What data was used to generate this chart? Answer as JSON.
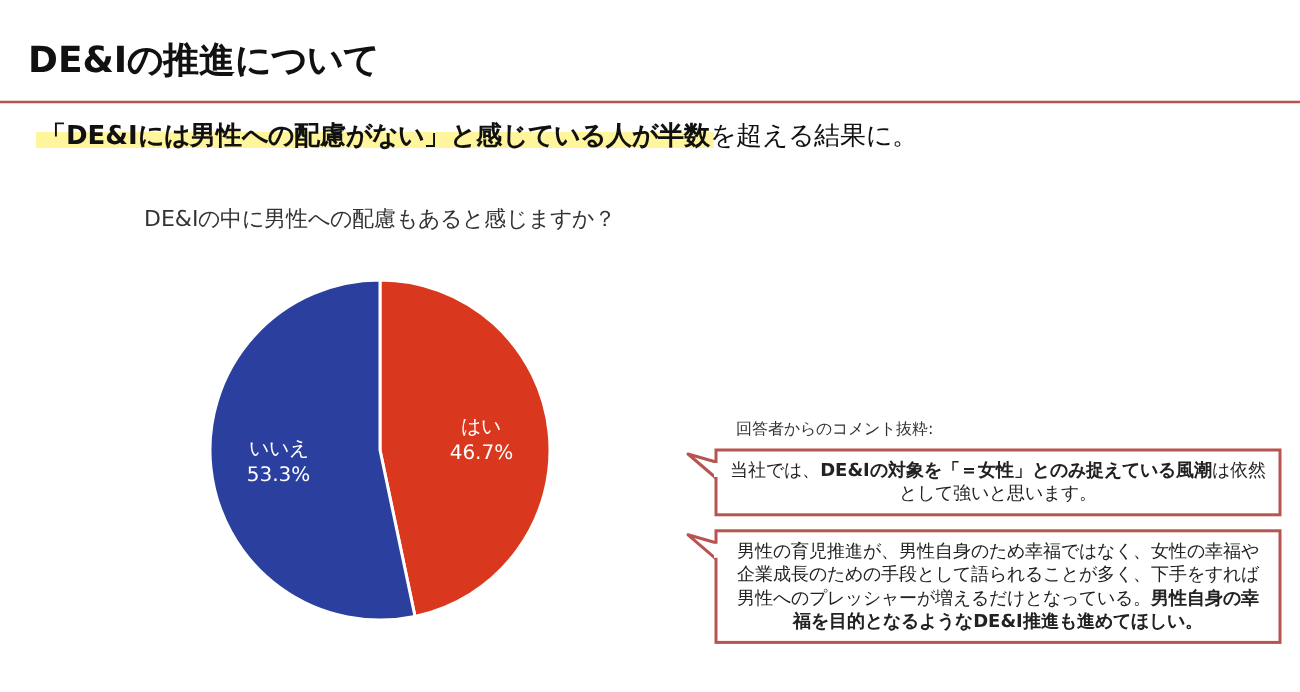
{
  "chart_data": {
    "type": "pie",
    "title": "DE&Iの推進について",
    "subtitle": "**「DE&Iには男性への配慮がない」と感じている人が半数**を超える結果に。",
    "xlabel": "DE&Iの中に男性への配慮もあると感じますか？",
    "categories": [
      "はい",
      "いいえ"
    ],
    "values": [
      46.7,
      53.3
    ],
    "colors": [
      "#d9381e",
      "#2b3f9e"
    ],
    "value_labels": [
      "46.7%",
      "53.3%"
    ],
    "annotations": [
      "回答者からのコメント抜粋:",
      "当社では、**DE&Iの対象を「＝女性」とのみ捉えている風潮**は依然として強いと思います。",
      "男性の育児推進が、男性自身のため幸福ではなく、女性の幸福や企業成長のための手段として語られることが多く、下手をすれば男性へのプレッシャーが増えるだけとなっている。**男性自身の幸福を目的となるようなDE&I推進も進めてほしい。**"
    ]
  }
}
